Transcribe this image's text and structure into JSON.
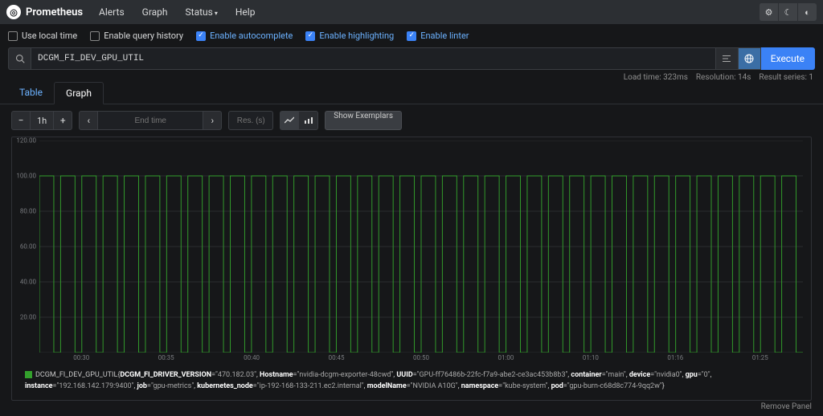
{
  "nav": {
    "brand": "Prometheus",
    "links": [
      "Alerts",
      "Graph",
      "Status",
      "Help"
    ],
    "status_has_caret": true
  },
  "options": [
    {
      "label": "Use local time",
      "checked": false,
      "blue": false
    },
    {
      "label": "Enable query history",
      "checked": false,
      "blue": false
    },
    {
      "label": "Enable autocomplete",
      "checked": true,
      "blue": true
    },
    {
      "label": "Enable highlighting",
      "checked": true,
      "blue": true
    },
    {
      "label": "Enable linter",
      "checked": true,
      "blue": true
    }
  ],
  "query": {
    "expression": "DCGM_FI_DEV_GPU_UTIL",
    "execute_label": "Execute"
  },
  "meta": {
    "load": "Load time: 323ms",
    "resolution": "Resolution: 14s",
    "series": "Result series: 1"
  },
  "tabs": {
    "table": "Table",
    "graph": "Graph",
    "active": "graph"
  },
  "controls": {
    "range": "1h",
    "endtime_placeholder": "End time",
    "res_placeholder": "Res. (s)",
    "exemplars": "Show Exemplars"
  },
  "chart": {
    "ylim": [
      0,
      120
    ],
    "yticks": [
      0,
      20,
      40,
      60,
      80,
      100,
      120
    ],
    "ytick_labels": [
      "",
      "20.00",
      "40.00",
      "60.00",
      "80.00",
      "100.00",
      "120.00"
    ],
    "xticks": [
      0.055,
      0.166,
      0.278,
      0.389,
      0.5,
      0.611,
      0.722,
      0.833,
      0.944
    ],
    "xtick_labels": [
      "00:30",
      "00:35",
      "00:40",
      "00:45",
      "00:50",
      "01:00",
      "01:10",
      "01:16",
      "01:25"
    ],
    "series_color": "#33a02c",
    "grid_color": "#2a2c30",
    "background": "#161719",
    "pulses": 36,
    "duty": 0.68,
    "high": 100,
    "low": 0
  },
  "legend": {
    "metric": "DCGM_FI_DEV_GPU_UTIL",
    "pairs": [
      [
        "DCGM_FI_DRIVER_VERSION",
        "470.182.03"
      ],
      [
        "Hostname",
        "nvidia-dcgm-exporter-48cwd"
      ],
      [
        "UUID",
        "GPU-ff76486b-22fc-f7a9-abe2-ce3ac453b8b3"
      ],
      [
        "container",
        "main"
      ],
      [
        "device",
        "nvidia0"
      ],
      [
        "gpu",
        "0"
      ],
      [
        "instance",
        "192.168.142.179:9400"
      ],
      [
        "job",
        "gpu-metrics"
      ],
      [
        "kubernetes_node",
        "ip-192-168-133-211.ec2.internal"
      ],
      [
        "modelName",
        "NVIDIA A10G"
      ],
      [
        "namespace",
        "kube-system"
      ],
      [
        "pod",
        "gpu-burn-c68d8c774-9qq2w"
      ]
    ]
  },
  "remove_label": "Remove Panel"
}
